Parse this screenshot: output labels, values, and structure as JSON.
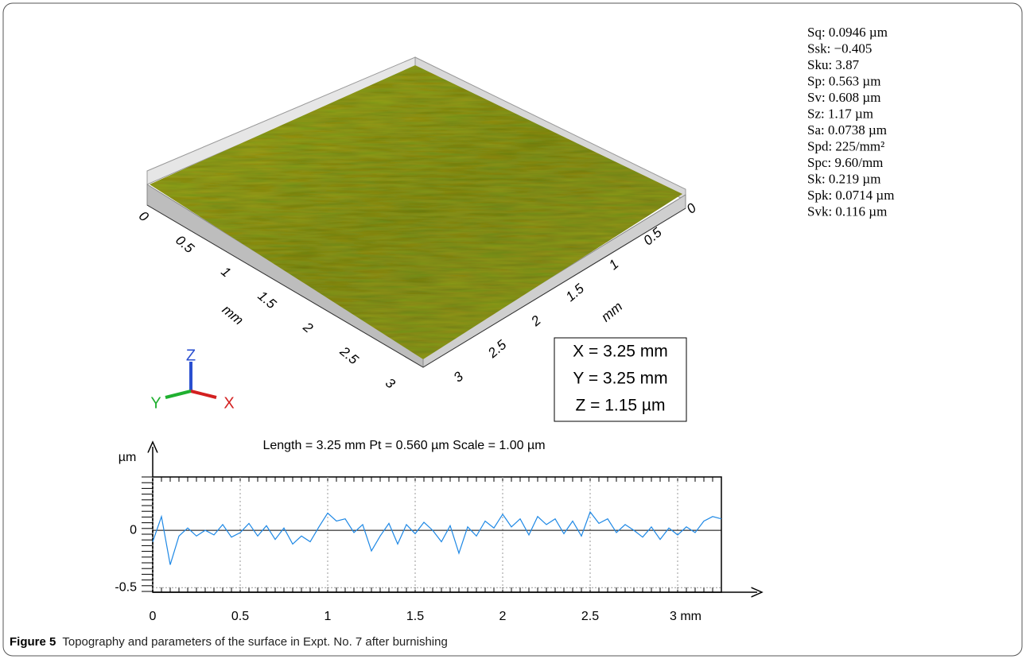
{
  "parameters": [
    "Sq: 0.0946 µm",
    "Ssk: −0.405",
    "Sku: 3.87",
    "Sp: 0.563 µm",
    "Sv: 0.608 µm",
    "Sz: 1.17 µm",
    "Sa: 0.0738 µm",
    "Spd: 225/mm²",
    "Spc: 9.60/mm",
    "Sk: 0.219 µm",
    "Spk: 0.0714 µm",
    "Svk: 0.116 µm"
  ],
  "surface": {
    "left_ticks": [
      "0",
      "0.5",
      "1",
      "1.5",
      "2",
      "2.5",
      "3"
    ],
    "right_ticks": [
      "0",
      "0.5",
      "1",
      "1.5",
      "2",
      "2.5",
      "3"
    ],
    "left_unit": "mm",
    "right_unit": "mm",
    "triad": [
      "Z",
      "Y",
      "X"
    ],
    "dimensions": [
      "X = 3.25 mm",
      "Y = 3.25 mm",
      "Z = 1.15 µm"
    ]
  },
  "chart_data": {
    "type": "line",
    "title": "Length = 3.25 mm  Pt = 0.560 µm  Scale = 1.00 µm",
    "y_label": "µm",
    "x": [
      0,
      0.05,
      0.1,
      0.15,
      0.2,
      0.25,
      0.3,
      0.35,
      0.4,
      0.45,
      0.5,
      0.55,
      0.6,
      0.65,
      0.7,
      0.75,
      0.8,
      0.85,
      0.9,
      0.95,
      1.0,
      1.05,
      1.1,
      1.15,
      1.2,
      1.25,
      1.3,
      1.35,
      1.4,
      1.45,
      1.5,
      1.55,
      1.6,
      1.65,
      1.7,
      1.75,
      1.8,
      1.85,
      1.9,
      1.95,
      2.0,
      2.05,
      2.1,
      2.15,
      2.2,
      2.25,
      2.3,
      2.35,
      2.4,
      2.45,
      2.5,
      2.55,
      2.6,
      2.65,
      2.7,
      2.75,
      2.8,
      2.85,
      2.9,
      2.95,
      3.0,
      3.05,
      3.1,
      3.15,
      3.2,
      3.25
    ],
    "values": [
      -0.1,
      0.12,
      -0.3,
      -0.05,
      0.02,
      -0.05,
      0.0,
      -0.04,
      0.05,
      -0.06,
      -0.02,
      0.06,
      -0.05,
      0.04,
      -0.08,
      0.02,
      -0.12,
      -0.05,
      -0.1,
      0.03,
      0.15,
      0.08,
      0.1,
      -0.02,
      0.05,
      -0.18,
      -0.05,
      0.06,
      -0.12,
      0.05,
      -0.03,
      0.07,
      0.0,
      -0.1,
      0.04,
      -0.2,
      0.03,
      -0.05,
      0.08,
      0.02,
      0.14,
      0.03,
      0.1,
      -0.04,
      0.12,
      0.05,
      0.1,
      -0.03,
      0.08,
      -0.05,
      0.16,
      0.06,
      0.1,
      -0.02,
      0.05,
      0.0,
      -0.06,
      0.03,
      -0.08,
      0.02,
      -0.04,
      0.03,
      -0.02,
      0.08,
      0.12,
      0.1
    ],
    "color": "#1e88e5",
    "xlim": [
      0,
      3.25
    ],
    "ylim": [
      -0.54,
      0.465
    ],
    "xticks": [
      0,
      0.5,
      1,
      1.5,
      2,
      2.5,
      {
        "value": 3,
        "label": "3 mm"
      }
    ],
    "yticks": [
      0,
      -0.5
    ],
    "grid": true
  },
  "caption": {
    "label": "Figure 5",
    "text": "Topography and parameters of the surface in Expt. No. 7 after burnishing"
  }
}
